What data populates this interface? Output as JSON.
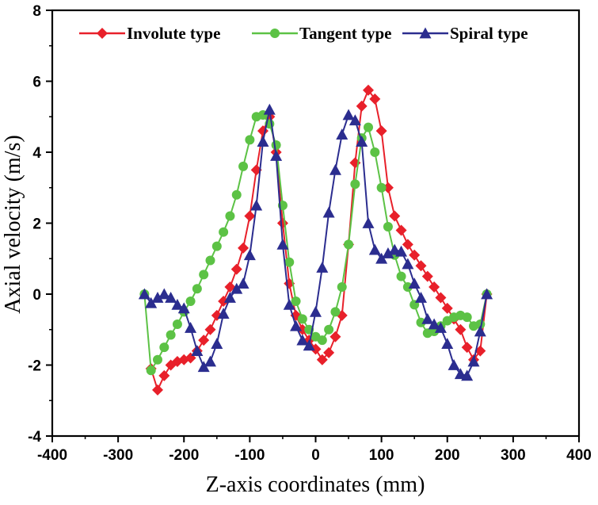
{
  "chart_data": {
    "type": "line",
    "title": "",
    "xlabel": "Z-axis coordinates (mm)",
    "ylabel": "Axial velocity (m/s)",
    "xlim": [
      -400,
      400
    ],
    "ylim": [
      -4,
      8
    ],
    "xticks": [
      -400,
      -300,
      -200,
      -100,
      0,
      100,
      200,
      300,
      400
    ],
    "yticks": [
      -4,
      -2,
      0,
      2,
      4,
      6,
      8
    ],
    "legend_position": "top",
    "series": [
      {
        "name": "Involute type",
        "color": "#e8202a",
        "marker": "diamond",
        "x": [
          -250,
          -240,
          -230,
          -220,
          -210,
          -200,
          -190,
          -180,
          -170,
          -160,
          -150,
          -140,
          -130,
          -120,
          -110,
          -100,
          -90,
          -80,
          -70,
          -60,
          -50,
          -40,
          -30,
          -20,
          -10,
          0,
          10,
          20,
          30,
          40,
          50,
          60,
          70,
          80,
          90,
          100,
          110,
          120,
          130,
          140,
          150,
          160,
          170,
          180,
          190,
          200,
          210,
          220,
          230,
          240,
          250,
          260
        ],
        "values": [
          -2.1,
          -2.7,
          -2.3,
          -2.0,
          -1.9,
          -1.85,
          -1.8,
          -1.6,
          -1.3,
          -1.0,
          -0.6,
          -0.2,
          0.2,
          0.7,
          1.3,
          2.2,
          3.5,
          4.6,
          5.0,
          4.0,
          2.0,
          0.3,
          -0.6,
          -1.0,
          -1.3,
          -1.55,
          -1.85,
          -1.65,
          -1.2,
          -0.6,
          1.4,
          3.7,
          5.3,
          5.75,
          5.5,
          4.6,
          3.0,
          2.2,
          1.8,
          1.4,
          1.1,
          0.8,
          0.5,
          0.2,
          -0.1,
          -0.4,
          -0.7,
          -1.0,
          -1.5,
          -1.85,
          -1.6,
          0.0
        ]
      },
      {
        "name": "Tangent type",
        "color": "#5cc245",
        "marker": "circle",
        "x": [
          -260,
          -250,
          -240,
          -230,
          -220,
          -210,
          -200,
          -190,
          -180,
          -170,
          -160,
          -150,
          -140,
          -130,
          -120,
          -110,
          -100,
          -90,
          -80,
          -70,
          -60,
          -50,
          -40,
          -30,
          -20,
          -10,
          0,
          10,
          20,
          30,
          40,
          50,
          60,
          70,
          80,
          90,
          100,
          110,
          120,
          130,
          140,
          150,
          160,
          170,
          180,
          190,
          200,
          210,
          220,
          230,
          240,
          250,
          260
        ],
        "values": [
          0.0,
          -2.15,
          -1.85,
          -1.5,
          -1.15,
          -0.85,
          -0.5,
          -0.2,
          0.15,
          0.55,
          0.95,
          1.35,
          1.75,
          2.2,
          2.8,
          3.6,
          4.35,
          5.0,
          5.05,
          4.8,
          4.2,
          2.5,
          0.9,
          -0.2,
          -0.7,
          -1.0,
          -1.2,
          -1.3,
          -1.0,
          -0.5,
          0.2,
          1.4,
          3.1,
          4.4,
          4.7,
          4.0,
          3.0,
          1.9,
          1.1,
          0.5,
          0.2,
          -0.3,
          -0.8,
          -1.1,
          -1.05,
          -0.9,
          -0.75,
          -0.65,
          -0.6,
          -0.65,
          -0.9,
          -0.85,
          0.0
        ]
      },
      {
        "name": "Spiral type",
        "color": "#2b2d8f",
        "marker": "triangle",
        "x": [
          -260,
          -250,
          -240,
          -230,
          -220,
          -210,
          -200,
          -190,
          -180,
          -170,
          -160,
          -150,
          -140,
          -130,
          -120,
          -110,
          -100,
          -90,
          -80,
          -70,
          -60,
          -50,
          -40,
          -30,
          -20,
          -10,
          0,
          10,
          20,
          30,
          40,
          50,
          60,
          70,
          80,
          90,
          100,
          110,
          120,
          130,
          140,
          150,
          160,
          170,
          180,
          190,
          200,
          210,
          220,
          230,
          240,
          250,
          260
        ],
        "values": [
          0.0,
          -0.25,
          -0.1,
          0.0,
          -0.1,
          -0.3,
          -0.4,
          -0.95,
          -1.6,
          -2.05,
          -1.9,
          -1.4,
          -0.55,
          -0.1,
          0.15,
          0.3,
          1.1,
          2.5,
          4.3,
          5.2,
          3.9,
          1.4,
          -0.3,
          -0.9,
          -1.3,
          -1.45,
          -0.5,
          0.75,
          2.3,
          3.5,
          4.5,
          5.05,
          4.9,
          4.3,
          2.0,
          1.25,
          1.0,
          1.15,
          1.25,
          1.2,
          0.85,
          0.3,
          -0.1,
          -0.7,
          -0.85,
          -0.95,
          -1.4,
          -2.0,
          -2.25,
          -2.3,
          -1.9,
          -1.05,
          0.0
        ]
      }
    ]
  }
}
